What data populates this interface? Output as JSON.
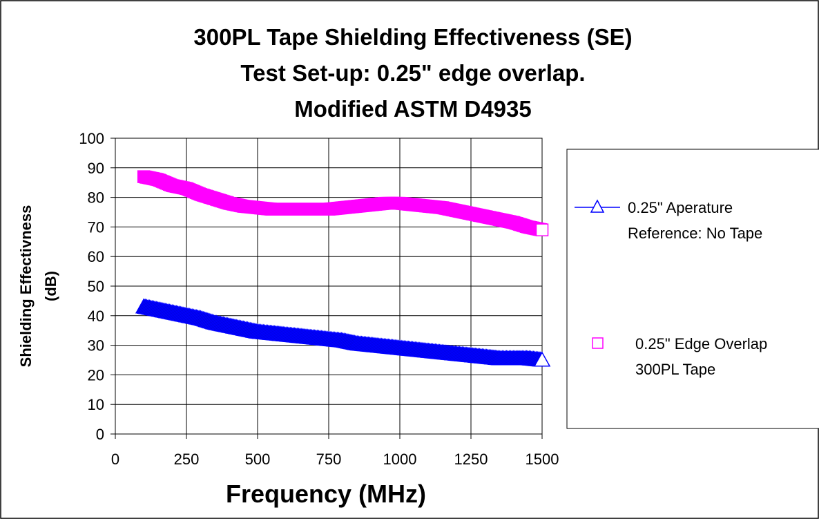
{
  "chart_data": {
    "type": "scatter",
    "title_lines": [
      "300PL Tape Shielding Effectiveness (SE)",
      "Test Set-up: 0.25\" edge overlap.",
      "Modified ASTM D4935"
    ],
    "xlabel": "Frequency (MHz)",
    "ylabel_lines": [
      "Shielding Effectivness",
      "(dB)"
    ],
    "xlim": [
      0,
      1500
    ],
    "ylim": [
      0,
      100
    ],
    "xticks": [
      0,
      250,
      500,
      750,
      1000,
      1250,
      1500
    ],
    "yticks": [
      0,
      10,
      20,
      30,
      40,
      50,
      60,
      70,
      80,
      90,
      100
    ],
    "grid": true,
    "legend_position": "right",
    "series": [
      {
        "name_lines": [
          "0.25\" Aperature",
          "Reference: No Tape"
        ],
        "marker": "triangle",
        "color": "#0000ff",
        "fill": "#0000cc",
        "x": [
          100,
          150,
          200,
          250,
          300,
          350,
          400,
          450,
          500,
          550,
          600,
          650,
          700,
          750,
          800,
          850,
          900,
          950,
          1000,
          1050,
          1100,
          1150,
          1200,
          1250,
          1300,
          1350,
          1400,
          1450,
          1500
        ],
        "y": [
          43,
          42,
          41,
          40,
          39,
          37.5,
          36.5,
          35.5,
          34.5,
          34,
          33.5,
          33,
          32.5,
          32,
          31.5,
          30.5,
          30,
          29.5,
          29,
          28.5,
          28,
          27.5,
          27,
          26.5,
          26,
          25.5,
          25.5,
          25.5,
          25
        ]
      },
      {
        "name_lines": [
          "0.25\" Edge Overlap",
          "300PL Tape"
        ],
        "marker": "square",
        "color": "#ff00ff",
        "fill": "#ff00ff",
        "x": [
          100,
          150,
          200,
          250,
          300,
          350,
          400,
          450,
          500,
          550,
          600,
          650,
          700,
          750,
          800,
          850,
          900,
          950,
          1000,
          1050,
          1100,
          1150,
          1200,
          1250,
          1300,
          1350,
          1400,
          1450,
          1500
        ],
        "y": [
          87,
          86,
          84,
          83,
          81,
          79.5,
          78,
          77,
          76.5,
          76,
          76,
          76,
          76,
          76,
          76.5,
          77,
          77.5,
          78,
          78,
          77.5,
          77,
          76.5,
          75.5,
          74.5,
          73.5,
          72.5,
          71.5,
          70,
          69
        ]
      }
    ]
  }
}
